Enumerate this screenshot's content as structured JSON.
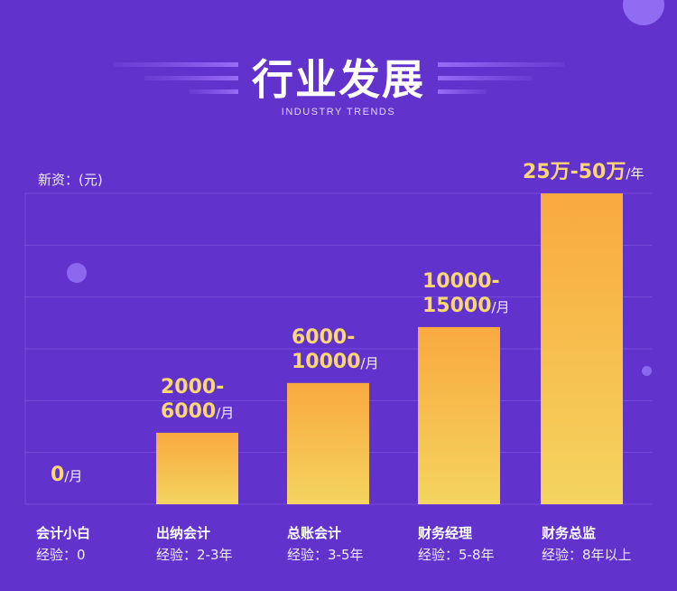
{
  "header": {
    "title": "行业发展",
    "subtitle": "INDUSTRY TRENDS"
  },
  "colors": {
    "background": "#6232cc",
    "bar_top": "#f9a93f",
    "bar_bottom": "#f4d45f",
    "value_text": "#f9d773",
    "accent_lines": "#8a5cf0"
  },
  "chart_data": {
    "type": "bar",
    "ylabel": "新资：(元)",
    "grid": true,
    "categories": [
      {
        "name": "会计小白",
        "experience": "经验：0"
      },
      {
        "name": "出纳会计",
        "experience": "经验：2-3年"
      },
      {
        "name": "总账会计",
        "experience": "经验：3-5年"
      },
      {
        "name": "财务经理",
        "experience": "经验：5-8年"
      },
      {
        "name": "财务总监",
        "experience": "经验：8年以上"
      }
    ],
    "values": [
      0,
      23,
      39,
      57,
      100
    ],
    "value_scale": "relative bar height (% of tallest bar)",
    "value_labels": [
      {
        "lines": [
          "0"
        ],
        "unit": "/月"
      },
      {
        "lines": [
          "2000-",
          "6000"
        ],
        "unit": "/月"
      },
      {
        "lines": [
          "6000-",
          "10000"
        ],
        "unit": "/月"
      },
      {
        "lines": [
          "10000-",
          "15000"
        ],
        "unit": "/月"
      },
      {
        "lines": [
          "25万-50万"
        ],
        "unit": "/年"
      }
    ]
  }
}
